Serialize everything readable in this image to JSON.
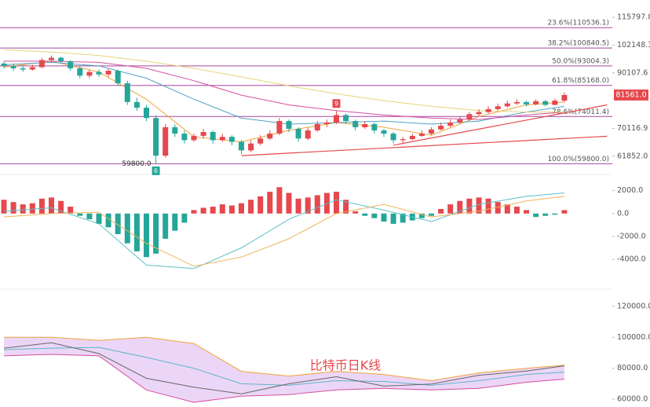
{
  "chart_data": [
    {
      "type": "candlestick",
      "log_scale": true,
      "ylim": [
        58400,
        120900
      ],
      "yticks": [
        115797.8,
        102148.3,
        90107.6,
        70116.9,
        {
          "value": 61852,
          "label": "61852.0"
        }
      ],
      "last_price": {
        "value": 81561,
        "label": "81561.0"
      },
      "up_color": "#e5484d",
      "down_color": "#26a69a",
      "open": [
        94000,
        93000,
        92000,
        91500,
        92500,
        95500,
        96500,
        95000,
        92000,
        89000,
        90500,
        89500,
        91000,
        86000,
        79000,
        77000,
        73500,
        62000,
        70500,
        68500,
        66500,
        67800,
        69000,
        66500,
        67500,
        66000,
        63500,
        65500,
        67000,
        68500,
        72500,
        70000,
        67000,
        69500,
        71500,
        72000,
        74500,
        72500,
        70500,
        71500,
        69500,
        68500,
        66500,
        66800,
        67800,
        68500,
        69800,
        71000,
        72000,
        73000,
        74800,
        75500,
        76500,
        77500,
        78500,
        79000,
        78200,
        79300,
        78000,
        79500
      ],
      "high": [
        95000,
        94000,
        93000,
        93500,
        96500,
        97500,
        97000,
        95500,
        93000,
        91500,
        91500,
        92000,
        91500,
        87000,
        80500,
        78000,
        74500,
        71500,
        71500,
        69500,
        68500,
        70000,
        69500,
        68500,
        68000,
        66500,
        66500,
        68000,
        69500,
        73500,
        73000,
        70500,
        70500,
        72500,
        73000,
        76000,
        75000,
        73000,
        72500,
        72000,
        70000,
        69000,
        67500,
        68500,
        69500,
        70500,
        72000,
        73000,
        74000,
        75500,
        76500,
        77500,
        78500,
        79500,
        80000,
        79500,
        80000,
        79800,
        80200,
        82500
      ],
      "low": [
        92000,
        91000,
        90500,
        91000,
        92000,
        94500,
        94000,
        91000,
        88000,
        88000,
        88500,
        88500,
        85000,
        78000,
        76000,
        72500,
        59800,
        61500,
        67500,
        65500,
        66000,
        67000,
        65500,
        66000,
        65000,
        62500,
        63000,
        65000,
        66500,
        68000,
        69000,
        66000,
        66500,
        69000,
        70500,
        71500,
        71500,
        69500,
        70000,
        68500,
        67500,
        65500,
        65500,
        66500,
        67500,
        68000,
        69500,
        70500,
        71500,
        72500,
        74000,
        75000,
        76000,
        77000,
        78000,
        77500,
        77800,
        77500,
        77800,
        79000
      ],
      "close": [
        93000,
        92000,
        91500,
        92500,
        95500,
        96500,
        95000,
        92000,
        89000,
        90500,
        89500,
        91000,
        86000,
        79000,
        77000,
        73500,
        62000,
        70500,
        68500,
        66500,
        67800,
        69000,
        66500,
        67500,
        66000,
        63500,
        65500,
        67000,
        68500,
        72500,
        70000,
        67000,
        69500,
        71500,
        72000,
        74500,
        72500,
        70500,
        71500,
        69500,
        68500,
        66500,
        66800,
        67800,
        68500,
        69800,
        71000,
        72000,
        73000,
        74800,
        75500,
        76500,
        77500,
        78500,
        79000,
        78200,
        79300,
        78000,
        79500,
        81561
      ],
      "ma_lines": [
        {
          "color": "#f0a33c",
          "x": [
            0,
            5,
            10,
            15,
            20,
            25,
            30,
            35,
            40,
            45,
            50,
            55,
            59
          ],
          "values": [
            92500,
            95000,
            90500,
            80000,
            67500,
            66000,
            69500,
            72000,
            70500,
            68000,
            74000,
            78000,
            79000
          ]
        },
        {
          "color": "#4fa3c7",
          "x": [
            0,
            5,
            10,
            15,
            20,
            25,
            30,
            35,
            40,
            45,
            50,
            55,
            59
          ],
          "values": [
            93500,
            94500,
            93000,
            88000,
            80000,
            73500,
            71500,
            72000,
            72500,
            71500,
            72500,
            75500,
            77500
          ]
        },
        {
          "color": "#d64fa0",
          "x": [
            0,
            5,
            10,
            15,
            20,
            25,
            30,
            35,
            40,
            45,
            50,
            55,
            59
          ],
          "values": [
            95000,
            95000,
            94500,
            92000,
            87000,
            81500,
            78000,
            76000,
            74500,
            73500,
            73000,
            74500,
            75500
          ]
        },
        {
          "color": "#e8d27a",
          "x": [
            0,
            5,
            10,
            15,
            20,
            25,
            30,
            35,
            40,
            45,
            50,
            55,
            59
          ],
          "values": [
            100000,
            99000,
            97500,
            95000,
            92000,
            88500,
            85000,
            82000,
            79500,
            77500,
            76000,
            75500,
            75500
          ]
        }
      ],
      "fib_color": "#a8469e",
      "fib_levels": [
        {
          "value": 110536.1,
          "label": "23.6%(110536.1)"
        },
        {
          "value": 100840.5,
          "label": "38.2%(100840.5)"
        },
        {
          "value": 93004.3,
          "label": "50.0%(93004.3)"
        },
        {
          "value": 85168,
          "label": "61.8%(85168.0)"
        },
        {
          "value": 74011.4,
          "label": "78.6%(74011.4)"
        },
        {
          "value": 59800,
          "label": "100.0%(59800.0)"
        }
      ],
      "trend_lines": [
        {
          "color": "#e5484d",
          "x": [
            41,
            63.5
          ],
          "values": [
            65000,
            78000
          ]
        },
        {
          "color": "#e5484d",
          "x": [
            25,
            63.5
          ],
          "values": [
            62000,
            67700
          ]
        }
      ],
      "annotations": [
        {
          "label": "59800.0",
          "x": 16,
          "place": "left"
        },
        {
          "label": "9",
          "x": 35,
          "place": "above"
        },
        {
          "label": "6",
          "x": 16,
          "place": "below"
        }
      ]
    },
    {
      "type": "macd",
      "ylim": [
        -5500,
        3000
      ],
      "yticks": [
        {
          "value": 2000,
          "label": "2000.0"
        },
        {
          "value": 0,
          "label": "0.0"
        },
        {
          "value": -2000,
          "label": "-2000.0"
        },
        {
          "value": -4000,
          "label": "-4000.0"
        }
      ],
      "up_color": "#e5484d",
      "down_color": "#26a69a",
      "values": [
        1200,
        1000,
        800,
        900,
        1300,
        1400,
        1100,
        600,
        -200,
        -500,
        -900,
        -1200,
        -1800,
        -2600,
        -3300,
        -3800,
        -3500,
        -2200,
        -1500,
        -800,
        300,
        500,
        600,
        800,
        700,
        900,
        1200,
        1500,
        1900,
        2300,
        1800,
        1300,
        1400,
        1600,
        1800,
        1900,
        1200,
        200,
        -200,
        -400,
        -700,
        -900,
        -800,
        -600,
        -400,
        -200,
        400,
        800,
        1100,
        1300,
        1400,
        1300,
        1000,
        800,
        600,
        300,
        -300,
        -200,
        -100,
        300
      ],
      "series": [
        {
          "color": "#5bc0c8",
          "x": [
            0,
            5,
            10,
            15,
            20,
            25,
            30,
            35,
            40,
            45,
            50,
            55,
            59
          ],
          "values": [
            200,
            500,
            -900,
            -4500,
            -4800,
            -3000,
            -500,
            1200,
            300,
            -700,
            800,
            1500,
            1800
          ]
        },
        {
          "color": "#f0b25a",
          "x": [
            0,
            5,
            10,
            15,
            20,
            25,
            30,
            35,
            40,
            45,
            50,
            55,
            59
          ],
          "values": [
            -300,
            0,
            100,
            -2600,
            -4600,
            -3800,
            -2200,
            0,
            800,
            -300,
            200,
            1100,
            1500
          ]
        }
      ]
    },
    {
      "type": "band",
      "ylim": [
        55000,
        126000
      ],
      "yticks": [
        {
          "value": 120000,
          "label": "120000.0"
        },
        {
          "value": 100000,
          "label": "100000.0"
        },
        {
          "value": 80000,
          "label": "80000.0"
        },
        {
          "value": 60000,
          "label": "60000.0"
        }
      ],
      "fill_color": "#ecd6f7",
      "annotation": "比特币日K线",
      "series": [
        {
          "color": "#f0a33c",
          "x": [
            0,
            5,
            10,
            15,
            20,
            25,
            30,
            35,
            40,
            45,
            50,
            55,
            59
          ],
          "values": [
            100000,
            100000,
            98000,
            100000,
            96000,
            78000,
            75000,
            78000,
            76000,
            72000,
            77000,
            80000,
            82000
          ]
        },
        {
          "color": "#5bb5c8",
          "x": [
            0,
            5,
            10,
            15,
            20,
            25,
            30,
            35,
            40,
            45,
            50,
            55,
            59
          ],
          "values": [
            92000,
            93000,
            93500,
            87000,
            80000,
            70000,
            69000,
            72000,
            71500,
            69000,
            72000,
            76000,
            77500
          ]
        },
        {
          "color": "#d64fa0",
          "x": [
            0,
            5,
            10,
            15,
            20,
            25,
            30,
            35,
            40,
            45,
            50,
            55,
            59
          ],
          "values": [
            88000,
            89000,
            88000,
            66000,
            58000,
            62000,
            63000,
            66000,
            67000,
            66000,
            67000,
            71000,
            73000
          ]
        },
        {
          "color": "#666666",
          "x": [
            0,
            5,
            10,
            15,
            20,
            25,
            30,
            35,
            40,
            45,
            50,
            55,
            59
          ],
          "values": [
            93000,
            96500,
            89500,
            73500,
            67800,
            63500,
            70000,
            74500,
            68500,
            69800,
            75500,
            78200,
            81561
          ]
        }
      ]
    }
  ]
}
